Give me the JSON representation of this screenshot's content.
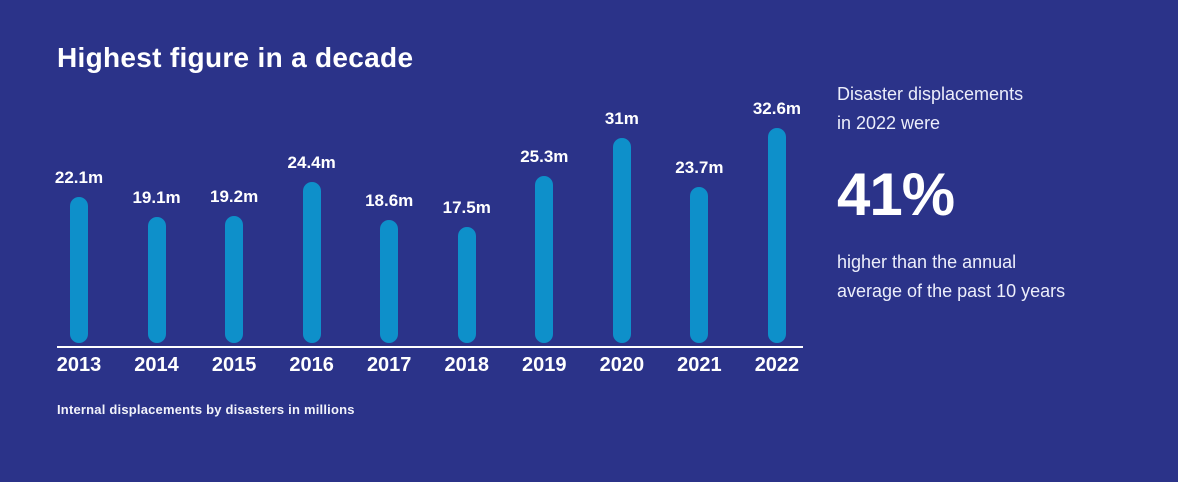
{
  "title": "Highest figure in a decade",
  "caption": "Internal displacements by disasters in millions",
  "colors": {
    "background": "#2b3389",
    "bar": "#0e90ca",
    "text": "#ffffff"
  },
  "chart_data": {
    "type": "bar",
    "title": "Highest figure in a decade",
    "categories": [
      "2013",
      "2014",
      "2015",
      "2016",
      "2017",
      "2018",
      "2019",
      "2020",
      "2021",
      "2022"
    ],
    "values": [
      22.1,
      19.1,
      19.2,
      24.4,
      18.6,
      17.5,
      25.3,
      31,
      23.7,
      32.6
    ],
    "value_labels": [
      "22.1m",
      "19.1m",
      "19.2m",
      "24.4m",
      "18.6m",
      "17.5m",
      "25.3m",
      "31m",
      "23.7m",
      "32.6m"
    ],
    "unit": "millions",
    "xlabel": "",
    "ylabel": "Internal displacements by disasters in millions",
    "ylim": [
      0,
      35
    ],
    "grid": false,
    "legend": "none",
    "bar_style": "rounded-pill",
    "baseline": "white x-axis line"
  },
  "side_panel": {
    "intro_line1": "Disaster displacements",
    "intro_line2": "in 2022 were",
    "stat": "41%",
    "outro_line1": "higher than the annual",
    "outro_line2": "average of the past 10 years"
  }
}
